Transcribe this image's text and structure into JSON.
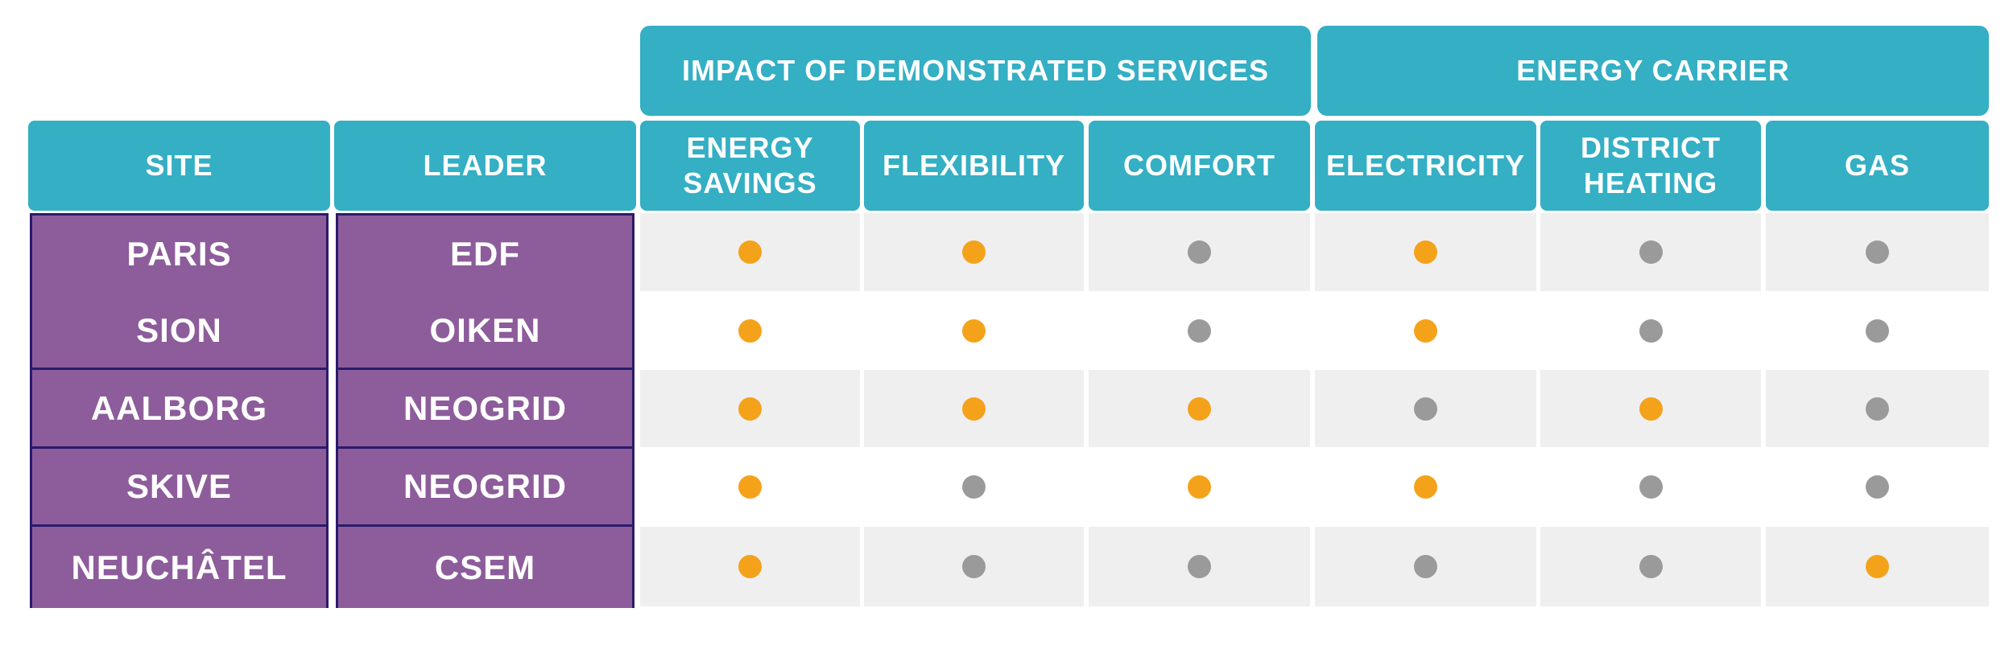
{
  "groups": [
    {
      "label": "IMPACT OF DEMONSTRATED SERVICES",
      "name": "group-impact-of-demonstrated-services"
    },
    {
      "label": "ENERGY CARRIER",
      "name": "group-energy-carrier"
    }
  ],
  "columns": [
    {
      "label": "SITE",
      "name": "header-site"
    },
    {
      "label": "LEADER",
      "name": "header-leader"
    },
    {
      "label": "ENERGY\nSAVINGS",
      "name": "header-energy-savings"
    },
    {
      "label": "FLEXIBILITY",
      "name": "header-flexibility"
    },
    {
      "label": "COMFORT",
      "name": "header-comfort"
    },
    {
      "label": "ELECTRICITY",
      "name": "header-electricity"
    },
    {
      "label": "DISTRICT\nHEATING",
      "name": "header-district-heating"
    },
    {
      "label": "GAS",
      "name": "header-gas"
    }
  ],
  "rows": [
    {
      "site": "PARIS",
      "leader": "EDF",
      "values": [
        true,
        true,
        false,
        true,
        false,
        false
      ]
    },
    {
      "site": "SION",
      "leader": "OIKEN",
      "values": [
        true,
        true,
        false,
        true,
        false,
        false
      ]
    },
    {
      "site": "AALBORG",
      "leader": "NEOGRID",
      "values": [
        true,
        true,
        true,
        false,
        true,
        false
      ]
    },
    {
      "site": "SKIVE",
      "leader": "NEOGRID",
      "values": [
        true,
        false,
        true,
        true,
        false,
        false
      ]
    },
    {
      "site": "NEUCHÂTEL",
      "leader": "CSEM",
      "values": [
        true,
        false,
        false,
        false,
        false,
        true
      ]
    }
  ],
  "colors": {
    "header": "#34afc4",
    "site_fill": "#8d5c9b",
    "site_border": "#2a1b6b",
    "dot_active": "#f5a21b",
    "dot_inactive": "#9a9a9a",
    "row_alt": "#efefef",
    "row_plain": "#ffffff"
  }
}
